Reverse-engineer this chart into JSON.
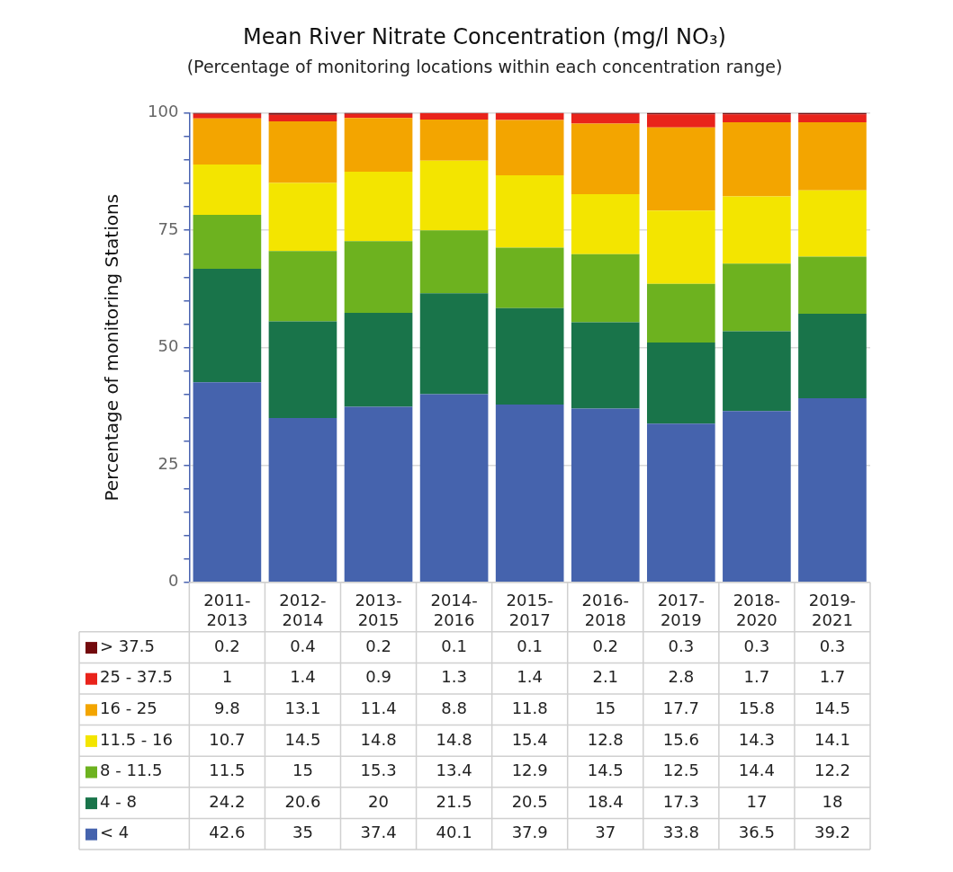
{
  "chart_data": {
    "type": "bar",
    "stacked": true,
    "legend": "bottom",
    "data_labels": true,
    "grid": "y",
    "title": "Mean River Nitrate Concentration (mg/l NO₃)",
    "subtitle": "(Percentage of monitoring locations within each concentration range)",
    "ylabel": "Percentage of monitoring Stations",
    "categories": [
      "2011-2013",
      "2012-2014",
      "2013-2015",
      "2014-2016",
      "2015-2017",
      "2016-2018",
      "2017-2019",
      "2018-2020",
      "2019-2021"
    ],
    "ylim": [
      0,
      100
    ],
    "yticks": [
      0,
      {
        "value": 5,
        "label": null
      },
      {
        "value": 10,
        "label": null
      },
      {
        "value": 15,
        "label": null
      },
      {
        "value": 20,
        "label": null
      },
      25,
      {
        "value": 30,
        "label": null
      },
      {
        "value": 35,
        "label": null
      },
      {
        "value": 40,
        "label": null
      },
      {
        "value": 45,
        "label": null
      },
      50,
      {
        "value": 55,
        "label": null
      },
      {
        "value": 60,
        "label": null
      },
      {
        "value": 65,
        "label": null
      },
      {
        "value": 70,
        "label": null
      },
      75,
      {
        "value": 80,
        "label": null
      },
      {
        "value": 85,
        "label": null
      },
      {
        "value": 90,
        "label": null
      },
      {
        "value": 95,
        "label": null
      },
      100
    ],
    "series": [
      {
        "name": "< 4",
        "color": "#4563ad",
        "values": [
          42.6,
          35,
          37.4,
          40.1,
          37.9,
          37,
          33.8,
          36.5,
          39.2
        ]
      },
      {
        "name": "4 - 8",
        "color": "#19744a",
        "values": [
          24.2,
          20.6,
          20,
          21.5,
          20.5,
          18.4,
          17.3,
          17,
          18
        ]
      },
      {
        "name": "8 - 11.5",
        "color": "#6db21f",
        "values": [
          11.5,
          15,
          15.3,
          13.4,
          12.9,
          14.5,
          12.5,
          14.4,
          12.2
        ]
      },
      {
        "name": "11.5 - 16",
        "color": "#f3e500",
        "values": [
          10.7,
          14.5,
          14.8,
          14.8,
          15.4,
          12.8,
          15.6,
          14.3,
          14.1
        ]
      },
      {
        "name": "16 - 25",
        "color": "#f3a500",
        "values": [
          9.8,
          13.1,
          11.4,
          8.8,
          11.8,
          15,
          17.7,
          15.8,
          14.5
        ]
      },
      {
        "name": "25 - 37.5",
        "color": "#e9231b",
        "values": [
          1,
          1.4,
          0.9,
          1.3,
          1.4,
          2.1,
          2.8,
          1.7,
          1.7
        ]
      },
      {
        "name": "> 37.5",
        "color": "#730a0d",
        "values": [
          0.2,
          0.4,
          0.2,
          0.1,
          0.1,
          0.2,
          0.3,
          0.3,
          0.3
        ]
      }
    ]
  }
}
